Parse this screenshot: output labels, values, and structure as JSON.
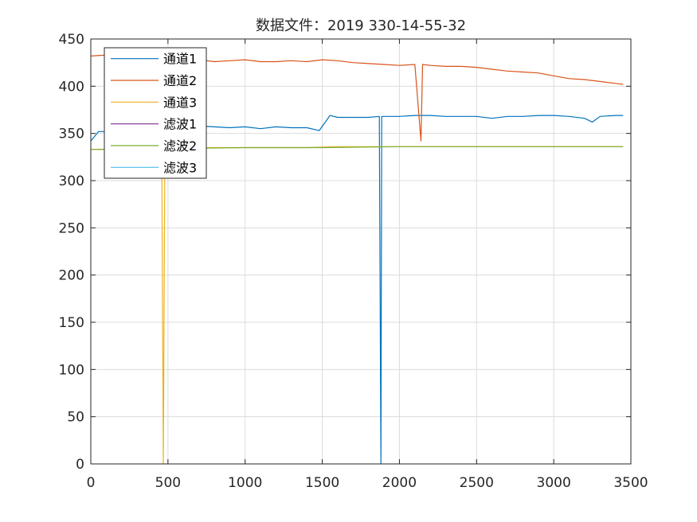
{
  "chart_data": {
    "type": "line",
    "title": "数据文件：2019 330-14-55-32",
    "xlabel": "",
    "ylabel": "",
    "xlim": [
      0,
      3500
    ],
    "ylim": [
      0,
      450
    ],
    "xticks": [
      0,
      500,
      1000,
      1500,
      2000,
      2500,
      3000,
      3500
    ],
    "yticks": [
      0,
      50,
      100,
      150,
      200,
      250,
      300,
      350,
      400,
      450
    ],
    "grid": true,
    "legend_position": "top-left",
    "series": [
      {
        "name": "通道1",
        "color": "#0072BD",
        "x": [
          0,
          50,
          100,
          200,
          300,
          400,
          500,
          600,
          700,
          800,
          900,
          1000,
          1100,
          1200,
          1300,
          1400,
          1480,
          1520,
          1550,
          1600,
          1700,
          1800,
          1870,
          1880,
          1885,
          1900,
          2000,
          2100,
          2200,
          2300,
          2400,
          2500,
          2600,
          2700,
          2800,
          2900,
          3000,
          3100,
          3200,
          3250,
          3300,
          3400,
          3450
        ],
        "y": [
          342,
          352,
          352,
          354,
          356,
          354,
          356,
          358,
          358,
          357,
          356,
          357,
          355,
          357,
          356,
          356,
          353,
          362,
          369,
          367,
          367,
          367,
          368,
          0,
          368,
          368,
          368,
          369,
          369,
          368,
          368,
          368,
          366,
          368,
          368,
          369,
          369,
          368,
          366,
          362,
          368,
          369,
          369
        ]
      },
      {
        "name": "通道2",
        "color": "#D95319",
        "x": [
          0,
          100,
          200,
          300,
          400,
          500,
          600,
          700,
          800,
          900,
          1000,
          1100,
          1200,
          1300,
          1400,
          1500,
          1600,
          1700,
          1800,
          1900,
          2000,
          2100,
          2140,
          2150,
          2200,
          2300,
          2400,
          2500,
          2600,
          2700,
          2800,
          2900,
          3000,
          3100,
          3200,
          3300,
          3400,
          3450
        ],
        "y": [
          432,
          433,
          432,
          430,
          429,
          429,
          429,
          428,
          426,
          427,
          428,
          426,
          426,
          427,
          426,
          428,
          427,
          425,
          424,
          423,
          422,
          423,
          342,
          423,
          422,
          421,
          421,
          420,
          418,
          416,
          415,
          414,
          411,
          408,
          407,
          405,
          403,
          402
        ]
      },
      {
        "name": "通道3",
        "color": "#EDB120",
        "x": [
          0,
          100,
          200,
          300,
          400,
          460,
          470,
          480,
          500,
          600,
          700,
          800,
          900,
          1000,
          1200,
          1400,
          1600,
          1800,
          2000,
          2200,
          2400,
          2600,
          2800,
          3000,
          3200,
          3400,
          3450
        ],
        "y": [
          333,
          333,
          334,
          334,
          334,
          334,
          0,
          334,
          334,
          335,
          335,
          335,
          335,
          335,
          335,
          335,
          336,
          336,
          336,
          336,
          336,
          336,
          336,
          336,
          336,
          336,
          336
        ]
      },
      {
        "name": "滤波1",
        "color": "#7E2F8E",
        "x": [],
        "y": []
      },
      {
        "name": "滤波2",
        "color": "#77AC30",
        "x": [
          0,
          500,
          1000,
          1500,
          2000,
          2500,
          3000,
          3450
        ],
        "y": [
          333,
          334,
          335,
          335,
          336,
          336,
          336,
          336
        ]
      },
      {
        "name": "滤波3",
        "color": "#4DBEEE",
        "x": [],
        "y": []
      }
    ]
  }
}
